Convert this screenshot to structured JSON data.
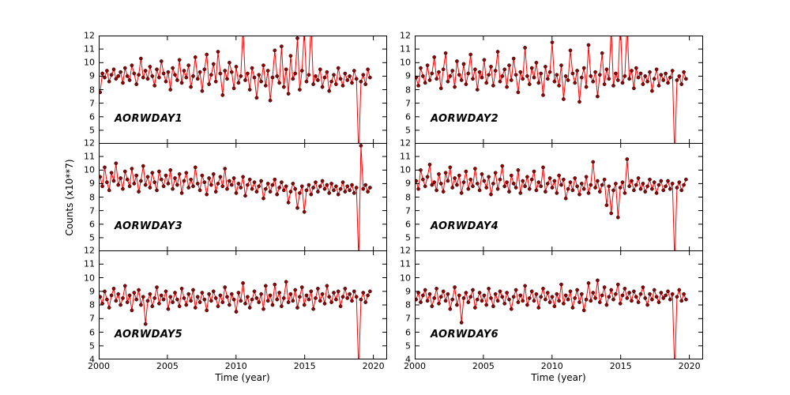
{
  "chart_data": {
    "type": "line",
    "xlabel": "Time (year)",
    "ylabel": "Counts (x10**7)",
    "xlim": [
      2000,
      2021
    ],
    "ylim": [
      4,
      12
    ],
    "x_ticks": [
      2000,
      2005,
      2010,
      2015,
      2020
    ],
    "y_ticks": [
      4,
      5,
      6,
      7,
      8,
      9,
      10,
      11,
      12
    ],
    "grid": false,
    "line_color": "#ff0000",
    "marker_color": "#990000",
    "marker_edge_color": "#000000",
    "x_start": 2000.1,
    "x_step": 0.1652,
    "series": [
      {
        "label": "AORWDAY1",
        "values": [
          7.8,
          9.2,
          8.9,
          9.4,
          8.6,
          9.1,
          9.5,
          8.8,
          9.0,
          9.3,
          8.5,
          9.6,
          9.0,
          8.7,
          9.8,
          9.2,
          8.4,
          9.1,
          10.3,
          8.9,
          9.4,
          8.8,
          9.7,
          9.0,
          8.3,
          9.5,
          8.9,
          10.1,
          9.2,
          8.6,
          9.3,
          8.0,
          9.6,
          9.1,
          8.7,
          10.2,
          8.5,
          9.4,
          8.9,
          9.8,
          8.2,
          9.0,
          10.4,
          8.8,
          9.3,
          7.9,
          9.5,
          10.6,
          8.4,
          9.1,
          9.9,
          8.6,
          10.8,
          9.2,
          7.6,
          9.4,
          8.8,
          10.0,
          9.3,
          8.1,
          9.7,
          8.5,
          9.0,
          12.6,
          8.7,
          9.2,
          8.0,
          9.6,
          8.9,
          7.4,
          9.1,
          8.6,
          9.8,
          8.3,
          9.4,
          7.2,
          8.9,
          10.9,
          9.0,
          8.5,
          11.2,
          8.2,
          9.5,
          7.7,
          10.5,
          8.8,
          9.2,
          11.8,
          8.0,
          9.4,
          12.4,
          8.6,
          9.1,
          13.0,
          8.4,
          9.0,
          8.7,
          9.5,
          8.2,
          8.9,
          9.3,
          7.9,
          8.6,
          9.1,
          8.4,
          9.6,
          8.8,
          8.3,
          9.2,
          8.7,
          9.0,
          8.5,
          9.4,
          8.8,
          3.0,
          8.6,
          9.1,
          8.4,
          9.5,
          8.9
        ]
      },
      {
        "label": "AORWDAY2",
        "values": [
          8.9,
          8.3,
          9.6,
          9.0,
          8.5,
          9.8,
          8.7,
          9.2,
          10.4,
          8.8,
          9.3,
          8.1,
          9.5,
          10.7,
          8.6,
          9.0,
          9.4,
          8.2,
          10.1,
          9.1,
          8.7,
          9.9,
          8.4,
          9.2,
          10.6,
          8.8,
          9.5,
          8.0,
          9.3,
          8.9,
          10.2,
          8.5,
          9.1,
          9.7,
          8.3,
          9.4,
          10.8,
          8.6,
          9.0,
          9.5,
          8.2,
          9.8,
          8.7,
          10.3,
          9.1,
          7.8,
          9.3,
          8.8,
          11.1,
          9.0,
          8.4,
          9.6,
          8.9,
          10.0,
          8.5,
          9.2,
          7.6,
          9.7,
          8.8,
          9.3,
          11.5,
          8.6,
          9.1,
          8.3,
          9.8,
          7.3,
          9.0,
          8.7,
          10.9,
          9.2,
          8.5,
          9.4,
          7.1,
          8.9,
          9.6,
          8.2,
          11.3,
          9.0,
          8.6,
          9.3,
          7.5,
          9.1,
          10.7,
          8.4,
          9.5,
          8.8,
          12.5,
          8.3,
          9.2,
          8.7,
          13.2,
          8.5,
          9.0,
          12.8,
          8.8,
          9.4,
          8.1,
          9.6,
          8.9,
          9.2,
          8.4,
          9.0,
          8.6,
          9.3,
          7.9,
          8.8,
          9.5,
          8.3,
          9.1,
          8.7,
          9.2,
          8.5,
          8.9,
          9.4,
          2.8,
          8.7,
          9.0,
          8.4,
          9.3,
          8.8
        ]
      },
      {
        "label": "AORWDAY3",
        "values": [
          9.5,
          8.8,
          10.2,
          9.1,
          8.5,
          9.8,
          9.2,
          10.5,
          8.9,
          9.4,
          8.6,
          9.9,
          9.3,
          8.8,
          10.1,
          9.0,
          9.6,
          8.4,
          9.2,
          10.3,
          8.9,
          9.5,
          8.7,
          9.8,
          9.1,
          8.5,
          9.9,
          9.3,
          8.8,
          9.6,
          9.0,
          10.0,
          8.6,
          9.4,
          8.9,
          9.7,
          8.3,
          9.2,
          9.8,
          8.7,
          9.3,
          8.8,
          10.2,
          9.0,
          8.5,
          9.6,
          9.1,
          8.2,
          9.4,
          8.9,
          9.7,
          8.4,
          9.0,
          9.5,
          8.8,
          10.1,
          8.6,
          9.2,
          8.9,
          9.4,
          8.3,
          9.0,
          8.7,
          9.5,
          8.1,
          8.9,
          9.3,
          8.6,
          9.1,
          8.4,
          8.8,
          9.2,
          7.9,
          8.6,
          9.0,
          8.4,
          8.9,
          9.3,
          8.2,
          8.7,
          9.1,
          8.5,
          8.8,
          7.6,
          8.4,
          9.0,
          8.6,
          7.2,
          8.3,
          8.8,
          6.9,
          8.5,
          8.9,
          8.2,
          8.7,
          9.1,
          8.4,
          8.8,
          9.2,
          8.6,
          8.9,
          8.3,
          9.0,
          8.5,
          8.8,
          8.2,
          8.6,
          9.1,
          8.4,
          8.8,
          8.5,
          8.9,
          8.3,
          8.7,
          3.2,
          11.8,
          8.6,
          8.9,
          8.4,
          8.7
        ]
      },
      {
        "label": "AORWDAY4",
        "values": [
          9.2,
          8.6,
          10.0,
          9.3,
          8.8,
          9.5,
          10.4,
          8.9,
          9.1,
          8.5,
          9.7,
          9.0,
          8.4,
          9.8,
          9.2,
          10.2,
          8.7,
          9.4,
          8.9,
          9.6,
          8.3,
          9.1,
          9.9,
          8.6,
          9.3,
          8.8,
          10.1,
          9.0,
          8.5,
          9.7,
          9.2,
          8.7,
          9.5,
          8.2,
          9.0,
          9.8,
          8.6,
          9.3,
          10.3,
          8.8,
          9.1,
          8.4,
          9.6,
          9.0,
          8.7,
          10.0,
          8.3,
          9.2,
          8.8,
          9.5,
          8.6,
          9.3,
          9.9,
          8.5,
          9.1,
          8.8,
          10.2,
          8.4,
          9.0,
          9.4,
          8.7,
          9.2,
          8.3,
          9.6,
          8.9,
          9.3,
          7.9,
          8.6,
          9.1,
          8.5,
          9.4,
          8.8,
          8.2,
          9.0,
          8.6,
          9.5,
          8.3,
          8.9,
          10.6,
          8.7,
          9.2,
          8.4,
          8.9,
          9.3,
          7.4,
          8.8,
          6.8,
          8.5,
          9.0,
          6.5,
          8.7,
          9.1,
          8.3,
          10.8,
          8.8,
          9.2,
          8.5,
          8.9,
          9.4,
          8.6,
          9.0,
          8.4,
          8.8,
          9.3,
          8.6,
          9.1,
          8.3,
          8.9,
          9.2,
          8.5,
          8.8,
          9.2,
          8.6,
          9.0,
          3.1,
          8.7,
          9.1,
          8.5,
          8.9,
          9.3
        ]
      },
      {
        "label": "AORWDAY5",
        "values": [
          8.6,
          8.1,
          9.0,
          8.4,
          7.8,
          8.7,
          9.2,
          8.3,
          8.8,
          8.0,
          8.5,
          9.4,
          8.2,
          8.7,
          7.6,
          8.9,
          8.4,
          9.1,
          8.0,
          8.6,
          6.6,
          8.3,
          8.8,
          7.9,
          8.5,
          9.3,
          8.1,
          8.7,
          8.4,
          9.0,
          7.7,
          8.6,
          8.2,
          8.9,
          8.4,
          7.9,
          9.2,
          8.5,
          8.0,
          8.8,
          8.3,
          9.1,
          7.8,
          8.6,
          8.2,
          8.9,
          8.4,
          7.6,
          8.8,
          8.3,
          9.0,
          8.5,
          7.9,
          8.7,
          8.2,
          9.3,
          8.6,
          8.0,
          8.8,
          8.4,
          7.5,
          8.9,
          8.3,
          9.6,
          8.1,
          8.6,
          7.8,
          8.4,
          9.0,
          8.5,
          8.2,
          8.8,
          7.7,
          9.4,
          8.3,
          8.7,
          8.0,
          9.5,
          8.4,
          8.9,
          7.9,
          8.5,
          9.7,
          8.2,
          8.8,
          8.3,
          9.1,
          7.8,
          8.6,
          9.3,
          8.0,
          8.7,
          8.4,
          9.0,
          7.7,
          8.5,
          9.2,
          8.3,
          8.8,
          8.1,
          9.4,
          8.6,
          8.2,
          8.9,
          8.4,
          9.0,
          7.9,
          8.6,
          9.2,
          8.5,
          8.8,
          8.3,
          9.0,
          8.6,
          3.0,
          8.4,
          8.9,
          8.2,
          8.7,
          9.0
        ]
      },
      {
        "label": "AORWDAY6",
        "values": [
          8.4,
          8.9,
          8.2,
          8.7,
          9.1,
          8.3,
          8.8,
          7.9,
          8.5,
          9.2,
          8.1,
          8.6,
          9.0,
          8.3,
          8.8,
          7.7,
          8.4,
          9.3,
          8.0,
          8.7,
          6.7,
          8.5,
          8.9,
          8.2,
          8.6,
          9.1,
          7.8,
          8.4,
          8.9,
          8.3,
          8.7,
          8.0,
          9.2,
          8.5,
          7.9,
          8.8,
          8.3,
          9.0,
          8.6,
          8.1,
          8.9,
          8.4,
          7.7,
          8.6,
          9.1,
          8.2,
          8.7,
          8.3,
          9.4,
          8.0,
          8.5,
          9.0,
          8.3,
          8.8,
          7.8,
          8.6,
          9.2,
          8.4,
          8.9,
          8.2,
          8.6,
          7.9,
          8.8,
          8.3,
          9.5,
          8.1,
          8.7,
          8.4,
          9.0,
          7.8,
          8.5,
          9.1,
          8.2,
          8.8,
          7.6,
          8.4,
          9.6,
          8.3,
          8.9,
          8.5,
          9.8,
          8.2,
          8.7,
          9.3,
          8.0,
          8.6,
          9.1,
          8.4,
          8.8,
          9.5,
          8.1,
          8.7,
          9.2,
          8.5,
          8.9,
          8.3,
          9.0,
          8.6,
          8.2,
          8.8,
          9.3,
          8.5,
          8.0,
          8.8,
          8.4,
          9.1,
          8.6,
          8.2,
          8.9,
          8.5,
          8.7,
          9.0,
          8.4,
          8.8,
          2.9,
          8.6,
          9.1,
          8.3,
          8.8,
          8.4
        ]
      }
    ]
  }
}
